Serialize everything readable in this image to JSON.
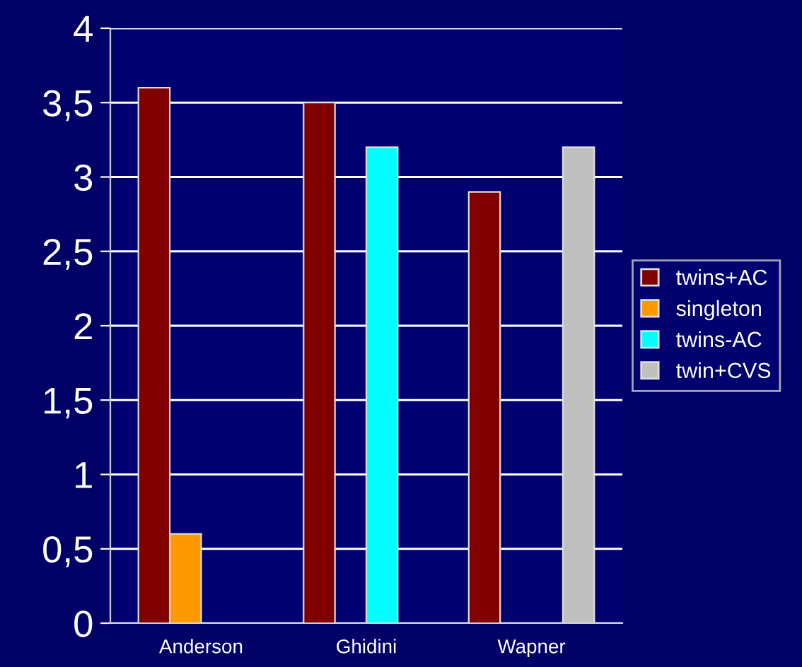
{
  "chart_data": {
    "type": "bar",
    "categories": [
      "Anderson",
      "Ghidini",
      "Wapner"
    ],
    "series": [
      {
        "name": "twins+AC",
        "color": "#800000",
        "values": [
          3.6,
          3.5,
          2.9
        ]
      },
      {
        "name": "singleton",
        "color": "#ff9900",
        "values": [
          0.6,
          null,
          null
        ]
      },
      {
        "name": "twins-AC",
        "color": "#00ffff",
        "values": [
          null,
          3.2,
          null
        ]
      },
      {
        "name": "twin+CVS",
        "color": "#c0c0c0",
        "values": [
          null,
          null,
          3.2
        ]
      }
    ],
    "ylim": [
      0,
      4
    ],
    "yticks": [
      0,
      {
        "value": 0.5,
        "label": "0,5"
      },
      1,
      {
        "value": 1.5,
        "label": "1,5"
      },
      2,
      {
        "value": 2.5,
        "label": "2,5"
      },
      3,
      {
        "value": 3.5,
        "label": "3,5"
      },
      4
    ],
    "grid": "y",
    "legend": "right"
  }
}
